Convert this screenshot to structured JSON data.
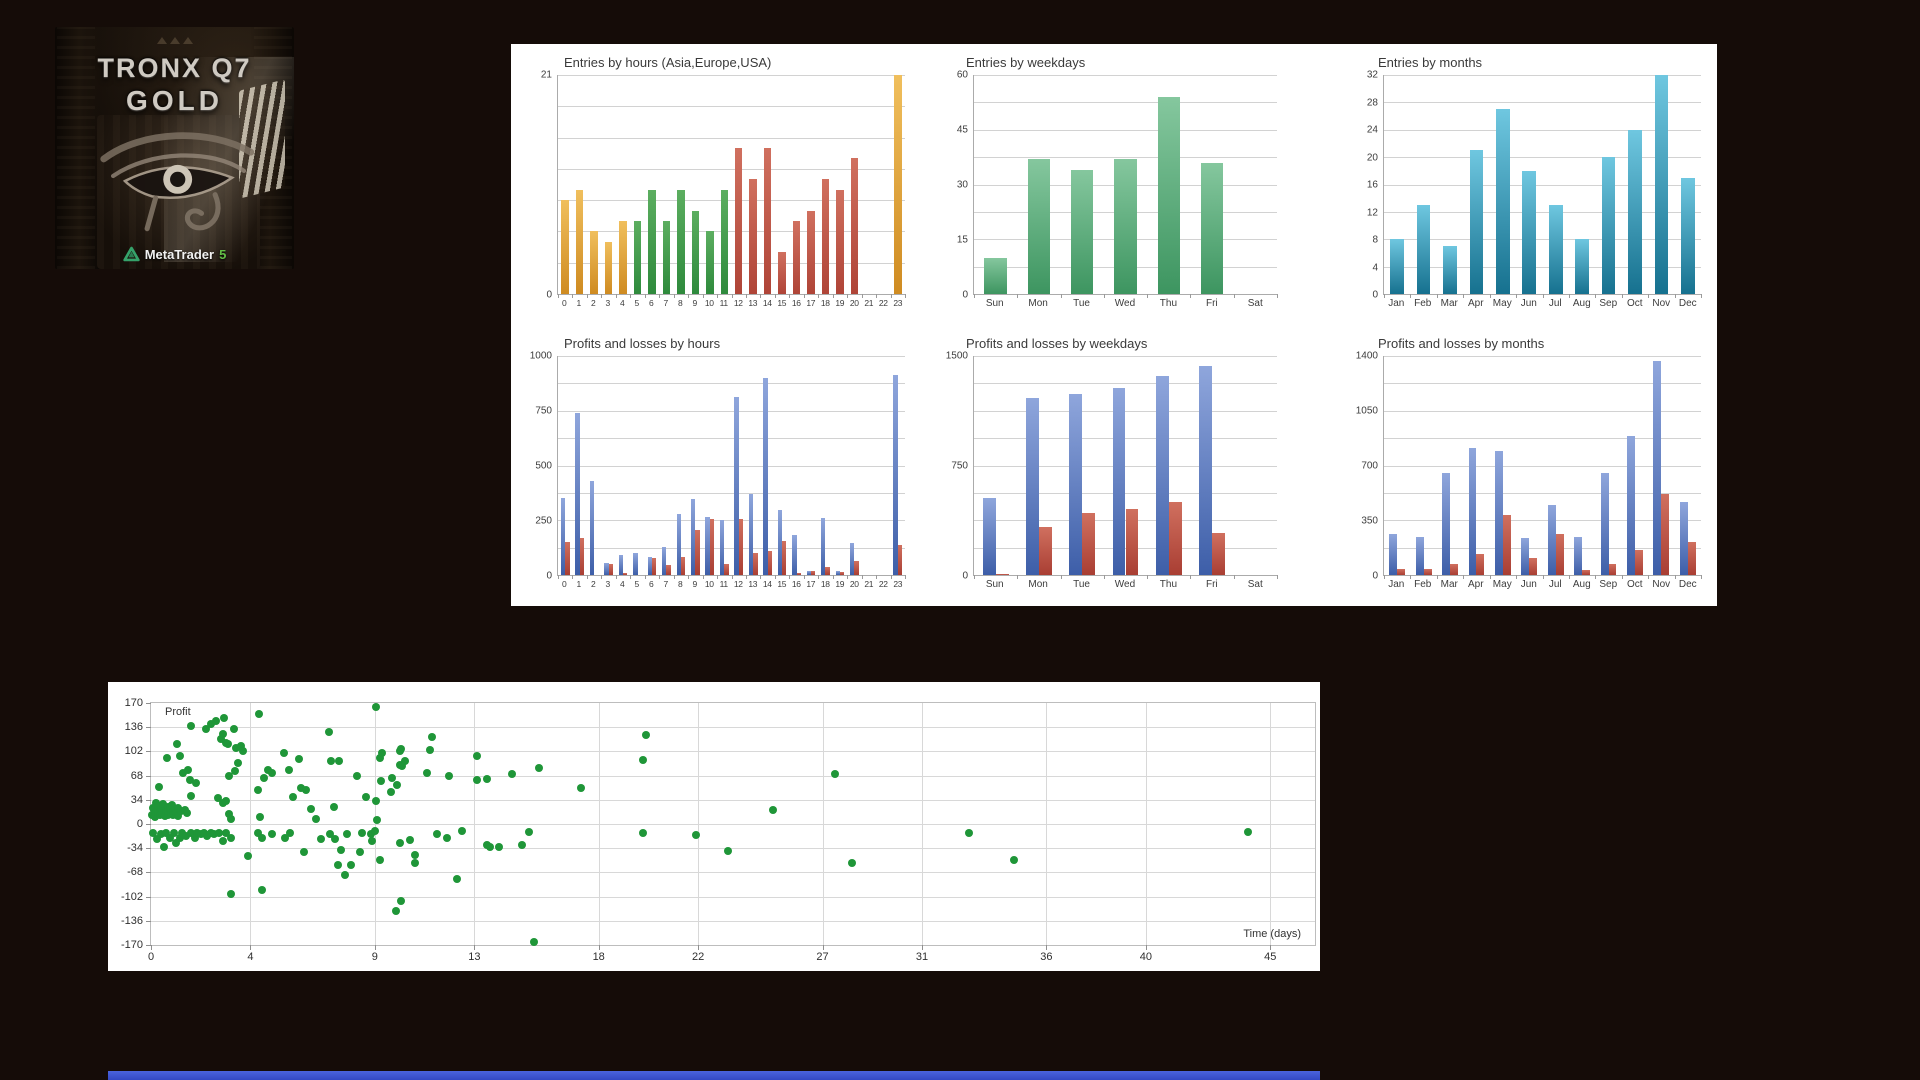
{
  "page": {
    "background_color": "#150C08",
    "bottom_bar_color": "#3D55D2"
  },
  "logo_card": {
    "title_line1": "TRONX Q7",
    "title_line2": "GOLD",
    "brand_name": "MetaTrader",
    "brand_version": "5"
  },
  "chart_data": [
    {
      "type": "bar",
      "title": "Entries by hours (Asia,Europe,USA)",
      "xlabel": "",
      "ylabel": "",
      "ylim": [
        0,
        21
      ],
      "y_ticks": [
        21,
        0
      ],
      "grid_divisions": 7,
      "categories": [
        "0",
        "1",
        "2",
        "3",
        "4",
        "5",
        "6",
        "7",
        "8",
        "9",
        "10",
        "11",
        "12",
        "13",
        "14",
        "15",
        "16",
        "17",
        "18",
        "19",
        "20",
        "21",
        "22",
        "23"
      ],
      "values": [
        9,
        10,
        6,
        5,
        7,
        7,
        10,
        7,
        10,
        8,
        6,
        10,
        14,
        11,
        14,
        4,
        7,
        8,
        11,
        10,
        13,
        0,
        0,
        21
      ],
      "bar_sessions": [
        "asia",
        "asia",
        "asia",
        "asia",
        "asia",
        "europe",
        "europe",
        "europe",
        "europe",
        "europe",
        "europe",
        "europe",
        "usa",
        "usa",
        "usa",
        "usa",
        "usa",
        "usa",
        "usa",
        "usa",
        "usa",
        "none",
        "none",
        "asia"
      ],
      "palette": {
        "asia": [
          "#F0BF5D",
          "#CF8B21"
        ],
        "europe": [
          "#5CAE60",
          "#2E8A3C"
        ],
        "usa": [
          "#D0705F",
          "#AF4437"
        ],
        "none": [
          "#FFFFFF",
          "#FFFFFF"
        ]
      }
    },
    {
      "type": "bar",
      "title": "Entries by weekdays",
      "ylim": [
        0,
        60
      ],
      "y_ticks": [
        60,
        45,
        30,
        15,
        0
      ],
      "grid_divisions": 8,
      "categories": [
        "Sun",
        "Mon",
        "Tue",
        "Wed",
        "Thu",
        "Fri",
        "Sat"
      ],
      "values": [
        10,
        37,
        34,
        37,
        54,
        36,
        0
      ],
      "bar_gradient": [
        "#85C79E",
        "#3D9560"
      ]
    },
    {
      "type": "bar",
      "title": "Entries by months",
      "ylim": [
        0,
        32
      ],
      "y_ticks": [
        32,
        28,
        24,
        20,
        16,
        12,
        8,
        4,
        0
      ],
      "grid_divisions": 8,
      "categories": [
        "Jan",
        "Feb",
        "Mar",
        "Apr",
        "May",
        "Jun",
        "Jul",
        "Aug",
        "Sep",
        "Oct",
        "Nov",
        "Dec"
      ],
      "values": [
        8,
        13,
        7,
        21,
        27,
        18,
        13,
        8,
        20,
        24,
        32,
        17
      ],
      "bar_gradient": [
        "#6FC7E0",
        "#16718F"
      ]
    },
    {
      "type": "bar",
      "title": "Profits and losses by hours",
      "ylim": [
        0,
        1000
      ],
      "y_ticks": [
        1000,
        750,
        500,
        250,
        0
      ],
      "grid_divisions": 8,
      "categories": [
        "0",
        "1",
        "2",
        "3",
        "4",
        "5",
        "6",
        "7",
        "8",
        "9",
        "10",
        "11",
        "12",
        "13",
        "14",
        "15",
        "16",
        "17",
        "18",
        "19",
        "20",
        "21",
        "22",
        "23"
      ],
      "series": [
        {
          "name": "profit",
          "values": [
            350,
            740,
            430,
            55,
            90,
            100,
            80,
            130,
            280,
            345,
            265,
            250,
            815,
            370,
            900,
            295,
            185,
            20,
            260,
            18,
            145,
            0,
            0,
            915
          ]
        },
        {
          "name": "loss",
          "values": [
            150,
            170,
            0,
            50,
            10,
            0,
            76,
            44,
            80,
            205,
            258,
            52,
            255,
            100,
            110,
            155,
            10,
            18,
            35,
            14,
            65,
            0,
            0,
            135
          ]
        }
      ],
      "profit_gradient": [
        "#8FA6DC",
        "#3D5EA8"
      ],
      "loss_gradient": [
        "#D0705F",
        "#A93E33"
      ]
    },
    {
      "type": "bar",
      "title": "Profits and losses by weekdays",
      "ylim": [
        0,
        1500
      ],
      "y_ticks": [
        1500,
        750,
        0
      ],
      "grid_divisions": 8,
      "categories": [
        "Sun",
        "Mon",
        "Tue",
        "Wed",
        "Thu",
        "Fri",
        "Sat"
      ],
      "series": [
        {
          "name": "profit",
          "values": [
            525,
            1210,
            1240,
            1280,
            1360,
            1430,
            0
          ]
        },
        {
          "name": "loss",
          "values": [
            10,
            330,
            425,
            450,
            500,
            290,
            0
          ]
        }
      ],
      "profit_gradient": [
        "#8FA6DC",
        "#3D5EA8"
      ],
      "loss_gradient": [
        "#D0705F",
        "#A93E33"
      ]
    },
    {
      "type": "bar",
      "title": "Profits and losses by months",
      "ylim": [
        0,
        1400
      ],
      "y_ticks": [
        1400,
        1050,
        700,
        350,
        0
      ],
      "grid_divisions": 8,
      "categories": [
        "Jan",
        "Feb",
        "Mar",
        "Apr",
        "May",
        "Jun",
        "Jul",
        "Aug",
        "Sep",
        "Oct",
        "Nov",
        "Dec"
      ],
      "series": [
        {
          "name": "profit",
          "values": [
            260,
            240,
            650,
            810,
            790,
            235,
            445,
            245,
            650,
            890,
            1370,
            465
          ]
        },
        {
          "name": "loss",
          "values": [
            40,
            40,
            70,
            135,
            385,
            110,
            260,
            30,
            70,
            160,
            520,
            210
          ]
        }
      ],
      "profit_gradient": [
        "#8FA6DC",
        "#3D5EA8"
      ],
      "loss_gradient": [
        "#D0705F",
        "#A93E33"
      ]
    },
    {
      "type": "scatter",
      "title": "",
      "ylabel_inline": "Profit",
      "xlabel": "Time (days)",
      "x_domain": [
        0,
        46.8
      ],
      "y_domain": [
        -170,
        170
      ],
      "x_ticks": [
        0,
        4,
        9,
        13,
        18,
        22,
        27,
        31,
        36,
        40,
        45
      ],
      "y_ticks": [
        170,
        136,
        102,
        68,
        34,
        0,
        -34,
        -68,
        -102,
        -136,
        -170
      ],
      "point_color": "#1F9638",
      "points": [
        [
          0.05,
          12
        ],
        [
          0.1,
          22
        ],
        [
          0.1,
          -12
        ],
        [
          0.15,
          10
        ],
        [
          0.2,
          17
        ],
        [
          0.22,
          30
        ],
        [
          0.25,
          -21
        ],
        [
          0.28,
          14
        ],
        [
          0.3,
          25
        ],
        [
          0.33,
          52
        ],
        [
          0.35,
          12
        ],
        [
          0.4,
          20
        ],
        [
          0.4,
          -14
        ],
        [
          0.45,
          15
        ],
        [
          0.5,
          28
        ],
        [
          0.52,
          -33
        ],
        [
          0.55,
          11
        ],
        [
          0.6,
          18
        ],
        [
          0.62,
          -12
        ],
        [
          0.65,
          93
        ],
        [
          0.68,
          24
        ],
        [
          0.7,
          13
        ],
        [
          0.75,
          21
        ],
        [
          0.78,
          -19
        ],
        [
          0.8,
          16
        ],
        [
          0.85,
          26
        ],
        [
          0.9,
          12
        ],
        [
          0.92,
          -12
        ],
        [
          0.95,
          19
        ],
        [
          1.0,
          15
        ],
        [
          1.0,
          -26
        ],
        [
          1.05,
          112
        ],
        [
          1.08,
          23
        ],
        [
          1.1,
          11
        ],
        [
          1.15,
          -19
        ],
        [
          1.18,
          95
        ],
        [
          1.2,
          18
        ],
        [
          1.25,
          -12
        ],
        [
          1.3,
          72
        ],
        [
          1.35,
          20
        ],
        [
          1.4,
          -17
        ],
        [
          1.45,
          16
        ],
        [
          1.5,
          76
        ],
        [
          1.55,
          62
        ],
        [
          1.6,
          40
        ],
        [
          1.6,
          -12
        ],
        [
          1.62,
          138
        ],
        [
          1.75,
          -19
        ],
        [
          1.8,
          57
        ],
        [
          1.85,
          -12
        ],
        [
          2.0,
          -14
        ],
        [
          2.15,
          -12
        ],
        [
          2.2,
          134
        ],
        [
          2.25,
          -17
        ],
        [
          2.4,
          141
        ],
        [
          2.4,
          -12
        ],
        [
          2.55,
          -14
        ],
        [
          2.6,
          145
        ],
        [
          2.7,
          36
        ],
        [
          2.75,
          -12
        ],
        [
          2.8,
          119
        ],
        [
          2.88,
          29
        ],
        [
          2.9,
          126
        ],
        [
          2.9,
          -24
        ],
        [
          2.95,
          149
        ],
        [
          3.0,
          114
        ],
        [
          3.0,
          33
        ],
        [
          3.0,
          -12
        ],
        [
          3.08,
          112
        ],
        [
          3.15,
          67
        ],
        [
          3.15,
          14
        ],
        [
          3.2,
          7
        ],
        [
          3.2,
          -19
        ],
        [
          3.22,
          -98
        ],
        [
          3.35,
          134
        ],
        [
          3.38,
          74
        ],
        [
          3.4,
          107
        ],
        [
          3.5,
          86
        ],
        [
          3.6,
          110
        ],
        [
          3.68,
          103
        ],
        [
          3.9,
          -45
        ],
        [
          4.3,
          48
        ],
        [
          4.3,
          -12
        ],
        [
          4.35,
          155
        ],
        [
          4.38,
          10
        ],
        [
          4.45,
          -93
        ],
        [
          4.48,
          -19
        ],
        [
          4.55,
          64
        ],
        [
          4.7,
          76
        ],
        [
          4.85,
          72
        ],
        [
          4.85,
          -14
        ],
        [
          5.35,
          100
        ],
        [
          5.38,
          -19
        ],
        [
          5.55,
          76
        ],
        [
          5.58,
          -12
        ],
        [
          5.7,
          38
        ],
        [
          5.95,
          91
        ],
        [
          6.05,
          50
        ],
        [
          6.15,
          -40
        ],
        [
          6.25,
          48
        ],
        [
          6.45,
          21
        ],
        [
          6.65,
          7
        ],
        [
          6.85,
          -21
        ],
        [
          7.15,
          129
        ],
        [
          7.18,
          -14
        ],
        [
          7.25,
          88
        ],
        [
          7.35,
          24
        ],
        [
          7.38,
          -21
        ],
        [
          7.5,
          -57
        ],
        [
          7.55,
          88
        ],
        [
          7.65,
          -36
        ],
        [
          7.8,
          -71
        ],
        [
          7.9,
          -14
        ],
        [
          8.05,
          -57
        ],
        [
          8.3,
          67
        ],
        [
          8.4,
          -40
        ],
        [
          8.5,
          -12
        ],
        [
          8.65,
          38
        ],
        [
          8.85,
          -14
        ],
        [
          8.9,
          -24
        ],
        [
          9.0,
          -10
        ],
        [
          9.05,
          165
        ],
        [
          9.05,
          33
        ],
        [
          9.1,
          5
        ],
        [
          9.2,
          93
        ],
        [
          9.2,
          -50
        ],
        [
          9.25,
          60
        ],
        [
          9.3,
          100
        ],
        [
          9.65,
          45
        ],
        [
          9.7,
          64
        ],
        [
          9.85,
          -122
        ],
        [
          9.9,
          55
        ],
        [
          10.0,
          103
        ],
        [
          10.0,
          83
        ],
        [
          10.0,
          -26
        ],
        [
          10.05,
          105
        ],
        [
          10.05,
          -108
        ],
        [
          10.1,
          81
        ],
        [
          10.2,
          88
        ],
        [
          10.4,
          -22
        ],
        [
          10.6,
          -43
        ],
        [
          10.62,
          -55
        ],
        [
          11.1,
          72
        ],
        [
          11.2,
          104
        ],
        [
          11.3,
          122
        ],
        [
          11.5,
          -14
        ],
        [
          11.9,
          -20
        ],
        [
          12.0,
          67
        ],
        [
          12.3,
          -77
        ],
        [
          12.5,
          -10
        ],
        [
          13.1,
          96
        ],
        [
          13.1,
          62
        ],
        [
          13.5,
          63
        ],
        [
          13.5,
          -30
        ],
        [
          13.62,
          -32
        ],
        [
          14.0,
          -32
        ],
        [
          14.5,
          70
        ],
        [
          14.9,
          -30
        ],
        [
          15.2,
          -11
        ],
        [
          15.4,
          -166
        ],
        [
          15.6,
          78
        ],
        [
          17.3,
          50
        ],
        [
          19.8,
          90
        ],
        [
          19.8,
          -12
        ],
        [
          19.9,
          125
        ],
        [
          21.9,
          -16
        ],
        [
          23.2,
          -38
        ],
        [
          25.0,
          19
        ],
        [
          27.5,
          70
        ],
        [
          28.2,
          -55
        ],
        [
          32.9,
          -12
        ],
        [
          34.7,
          -50
        ],
        [
          44.1,
          -11
        ]
      ]
    }
  ]
}
